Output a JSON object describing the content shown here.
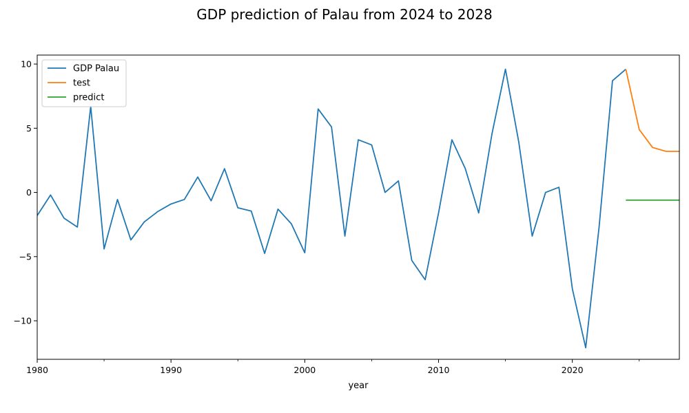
{
  "chart_data": {
    "type": "line",
    "title": "GDP prediction of Palau from 2024 to 2028",
    "xlabel": "year",
    "ylabel": "",
    "xlim": [
      1980,
      2028
    ],
    "ylim": [
      -13,
      10.7
    ],
    "x_ticks": [
      1980,
      1990,
      2000,
      2010,
      2020
    ],
    "x_minor_ticks": [
      1985,
      1995,
      2005,
      2015,
      2025
    ],
    "y_ticks": [
      -10,
      -5,
      0,
      5,
      10
    ],
    "grid": false,
    "legend_position": "top-left",
    "series": [
      {
        "name": "GDP Palau",
        "color": "#1f77b4",
        "x": [
          1980,
          1981,
          1982,
          1983,
          1984,
          1985,
          1986,
          1987,
          1988,
          1989,
          1990,
          1991,
          1992,
          1993,
          1994,
          1995,
          1996,
          1997,
          1998,
          1999,
          2000,
          2001,
          2002,
          2003,
          2004,
          2005,
          2006,
          2007,
          2008,
          2009,
          2010,
          2011,
          2012,
          2013,
          2014,
          2015,
          2016,
          2017,
          2018,
          2019,
          2020,
          2021,
          2022,
          2023,
          2024
        ],
        "values": [
          -1.8,
          -0.2,
          -2.0,
          -2.7,
          6.7,
          -4.4,
          -0.55,
          -3.7,
          -2.3,
          -1.5,
          -0.9,
          -0.55,
          1.2,
          -0.65,
          1.85,
          -1.2,
          -1.45,
          -4.75,
          -1.3,
          -2.45,
          -4.7,
          6.5,
          5.1,
          -3.4,
          4.1,
          3.7,
          0.0,
          0.9,
          -5.3,
          -6.8,
          -1.6,
          4.1,
          1.85,
          -1.6,
          4.6,
          9.6,
          3.9,
          -3.4,
          0.0,
          0.4,
          -7.5,
          -12.1,
          -2.7,
          8.7,
          9.6
        ]
      },
      {
        "name": "test",
        "color": "#ff7f0e",
        "x": [
          2024,
          2025,
          2026,
          2027,
          2028
        ],
        "values": [
          9.6,
          4.9,
          3.5,
          3.2,
          3.2
        ]
      },
      {
        "name": "predict",
        "color": "#2ca02c",
        "x": [
          2024,
          2025,
          2026,
          2027,
          2028
        ],
        "values": [
          -0.6,
          -0.6,
          -0.6,
          -0.6,
          -0.6
        ]
      }
    ]
  }
}
